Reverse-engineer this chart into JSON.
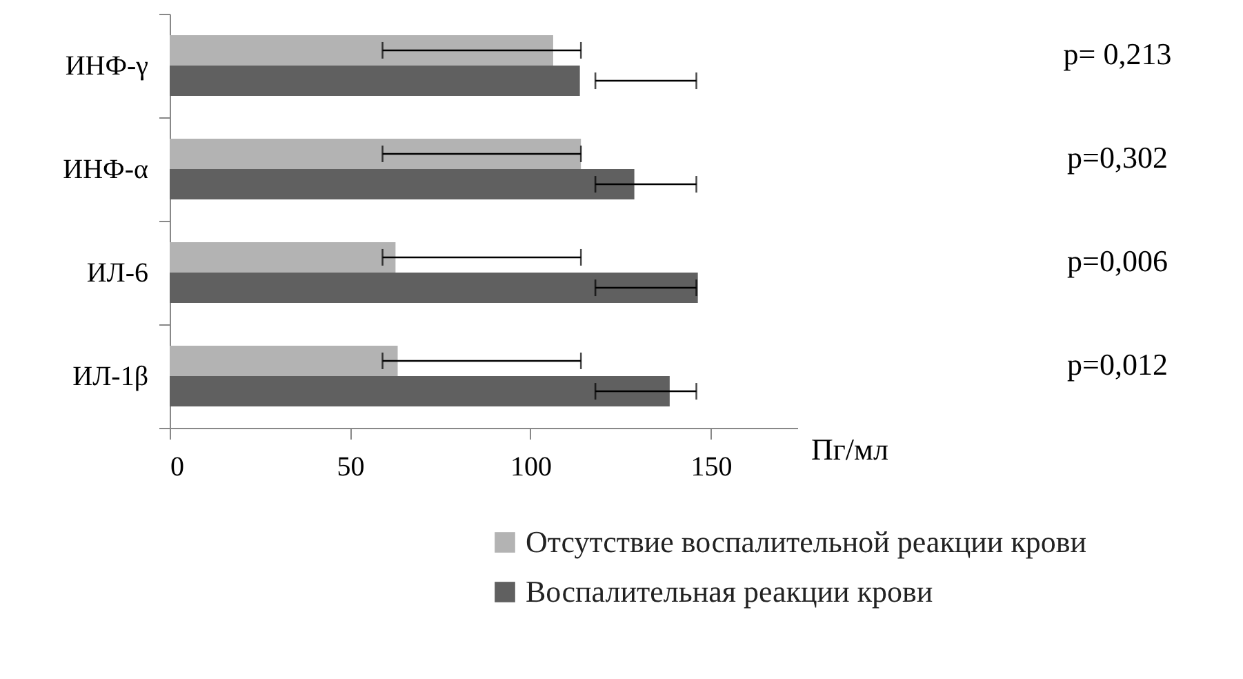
{
  "chart_data": {
    "type": "bar",
    "orientation": "horizontal",
    "categories": [
      "ИНФ-γ",
      "ИНФ-α",
      "ИЛ-6",
      "ИЛ-1β"
    ],
    "series": [
      {
        "name": "Отсутствие воспалительной реакции крови",
        "color": "#b3b3b3",
        "values": [
          106.3,
          114,
          62.6,
          63.2
        ],
        "errors": [
          [
            59,
            114
          ],
          [
            59,
            114
          ],
          [
            59,
            114
          ],
          [
            59,
            114
          ]
        ]
      },
      {
        "name": "Воспалительная реакции крови",
        "color": "#606060",
        "values": [
          113.7,
          128.8,
          146.4,
          138.6
        ],
        "errors": [
          [
            118,
            146
          ],
          [
            118,
            146
          ],
          [
            118,
            146
          ],
          [
            118,
            146
          ]
        ]
      }
    ],
    "xlabel": "Пг/мл",
    "xlim": [
      0,
      174
    ],
    "xticks": [
      0,
      50,
      100,
      150
    ],
    "annotations": [
      "p= 0,213",
      "p=0,302",
      "p=0,006",
      "p=0,012"
    ],
    "grid": false,
    "legend": "bottom"
  }
}
